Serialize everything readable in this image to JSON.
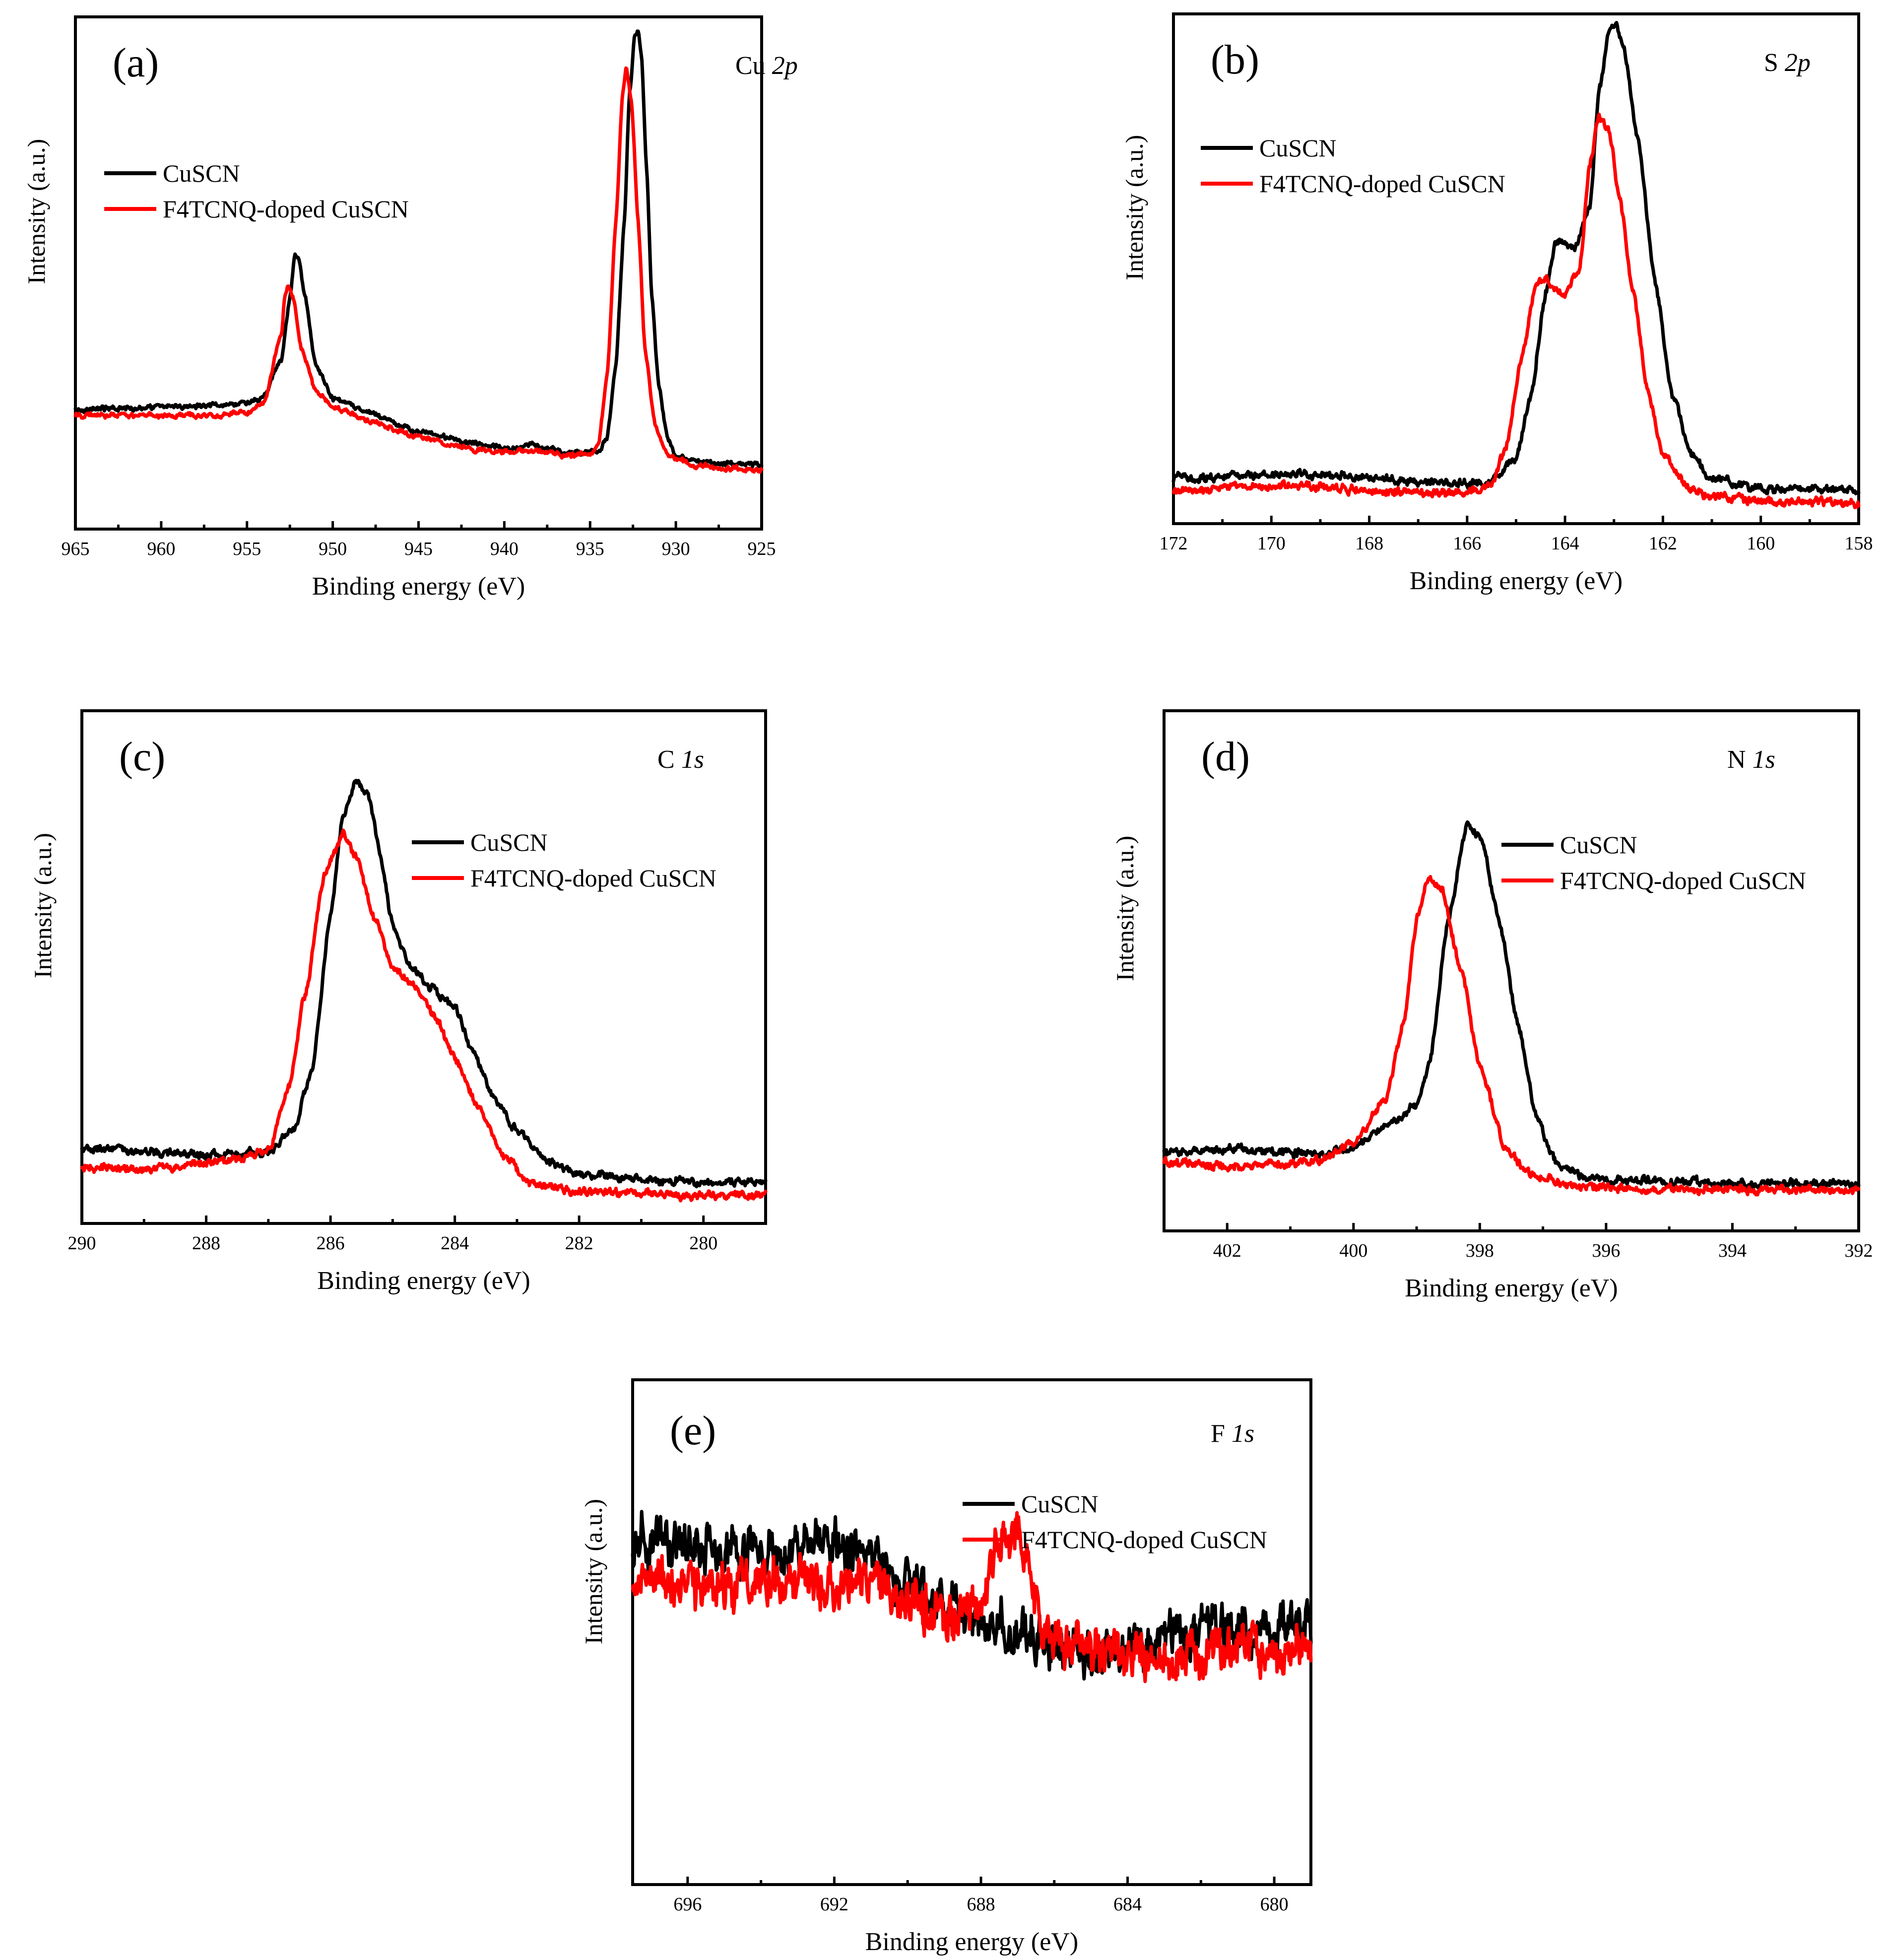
{
  "figure": {
    "description_panels": [
      "a",
      "b",
      "c",
      "d",
      "e"
    ]
  },
  "colors": {
    "series_pristine": "#000000",
    "series_doped": "#ff0000"
  },
  "legend": {
    "pristine": "CuSCN",
    "doped": "F4TCNQ-doped CuSCN"
  },
  "axis_labels": {
    "x": "Binding energy (eV)",
    "y": "Intensity (a.u.)"
  },
  "chart_data": [
    {
      "id": "a",
      "type": "line",
      "tag": "(a)",
      "element": "Cu",
      "orbital": "2p",
      "xlabel": "Binding energy (eV)",
      "ylabel": "Intensity (a.u.)",
      "xlim": [
        965,
        925
      ],
      "xticks": [
        965,
        960,
        955,
        950,
        945,
        940,
        935,
        930,
        925
      ],
      "ylim": [
        0,
        1
      ],
      "noise": 0.003,
      "series": [
        {
          "name": "CuSCN",
          "color": "#000000",
          "points": [
            [
              965,
              0.234
            ],
            [
              960,
              0.238
            ],
            [
              957,
              0.243
            ],
            [
              955,
              0.245
            ],
            [
              954,
              0.26
            ],
            [
              953,
              0.33
            ],
            [
              952.5,
              0.45
            ],
            [
              952.2,
              0.535
            ],
            [
              952,
              0.53
            ],
            [
              951.6,
              0.45
            ],
            [
              951,
              0.32
            ],
            [
              950,
              0.255
            ],
            [
              948,
              0.228
            ],
            [
              945,
              0.19
            ],
            [
              942,
              0.168
            ],
            [
              940,
              0.158
            ],
            [
              939,
              0.16
            ],
            [
              938.5,
              0.165
            ],
            [
              938,
              0.16
            ],
            [
              936,
              0.15
            ],
            [
              934.5,
              0.15
            ],
            [
              934,
              0.18
            ],
            [
              933.5,
              0.32
            ],
            [
              933,
              0.6
            ],
            [
              932.7,
              0.85
            ],
            [
              932.4,
              0.96
            ],
            [
              932.2,
              0.97
            ],
            [
              932,
              0.92
            ],
            [
              931.7,
              0.7
            ],
            [
              931.4,
              0.45
            ],
            [
              931,
              0.28
            ],
            [
              930.5,
              0.18
            ],
            [
              930,
              0.143
            ],
            [
              929,
              0.133
            ],
            [
              927,
              0.128
            ],
            [
              925,
              0.126
            ]
          ]
        },
        {
          "name": "F4TCNQ-doped CuSCN",
          "color": "#ff0000",
          "points": [
            [
              965,
              0.222
            ],
            [
              960,
              0.222
            ],
            [
              957,
              0.222
            ],
            [
              955,
              0.226
            ],
            [
              954,
              0.25
            ],
            [
              953,
              0.38
            ],
            [
              952.8,
              0.45
            ],
            [
              952.6,
              0.47
            ],
            [
              952.3,
              0.45
            ],
            [
              951.8,
              0.35
            ],
            [
              951,
              0.27
            ],
            [
              950,
              0.24
            ],
            [
              948,
              0.212
            ],
            [
              945,
              0.18
            ],
            [
              942,
              0.156
            ],
            [
              940,
              0.15
            ],
            [
              939,
              0.153
            ],
            [
              938,
              0.153
            ],
            [
              936,
              0.144
            ],
            [
              935,
              0.145
            ],
            [
              934.5,
              0.17
            ],
            [
              934,
              0.3
            ],
            [
              933.5,
              0.6
            ],
            [
              933.1,
              0.85
            ],
            [
              932.9,
              0.9
            ],
            [
              932.6,
              0.84
            ],
            [
              932.2,
              0.6
            ],
            [
              931.8,
              0.35
            ],
            [
              931.2,
              0.2
            ],
            [
              930.5,
              0.145
            ],
            [
              929,
              0.125
            ],
            [
              927,
              0.118
            ],
            [
              925,
              0.116
            ]
          ]
        }
      ]
    },
    {
      "id": "b",
      "type": "line",
      "tag": "(b)",
      "element": "S",
      "orbital": "2p",
      "xlabel": "Binding energy (eV)",
      "ylabel": "Intensity (a.u.)",
      "xlim": [
        172,
        158
      ],
      "xticks": [
        172,
        170,
        168,
        166,
        164,
        162,
        160,
        158
      ],
      "ylim": [
        0,
        1
      ],
      "noise": 0.005,
      "series": [
        {
          "name": "CuSCN",
          "color": "#000000",
          "points": [
            [
              172,
              0.09
            ],
            [
              170,
              0.097
            ],
            [
              169,
              0.098
            ],
            [
              168,
              0.09
            ],
            [
              167,
              0.082
            ],
            [
              166,
              0.078
            ],
            [
              165.5,
              0.085
            ],
            [
              165,
              0.13
            ],
            [
              164.7,
              0.25
            ],
            [
              164.4,
              0.45
            ],
            [
              164.2,
              0.55
            ],
            [
              164,
              0.55
            ],
            [
              163.8,
              0.535
            ],
            [
              163.5,
              0.62
            ],
            [
              163.3,
              0.85
            ],
            [
              163.1,
              0.97
            ],
            [
              162.95,
              0.98
            ],
            [
              162.8,
              0.93
            ],
            [
              162.5,
              0.75
            ],
            [
              162.2,
              0.5
            ],
            [
              161.8,
              0.25
            ],
            [
              161.4,
              0.13
            ],
            [
              161,
              0.09
            ],
            [
              160,
              0.07
            ],
            [
              159,
              0.065
            ],
            [
              158,
              0.065
            ]
          ]
        },
        {
          "name": "F4TCNQ-doped CuSCN",
          "color": "#ff0000",
          "points": [
            [
              172,
              0.065
            ],
            [
              170,
              0.075
            ],
            [
              169,
              0.072
            ],
            [
              168,
              0.065
            ],
            [
              167,
              0.06
            ],
            [
              166,
              0.06
            ],
            [
              165.5,
              0.075
            ],
            [
              165.2,
              0.15
            ],
            [
              164.9,
              0.32
            ],
            [
              164.6,
              0.47
            ],
            [
              164.4,
              0.48
            ],
            [
              164,
              0.45
            ],
            [
              163.7,
              0.5
            ],
            [
              163.5,
              0.7
            ],
            [
              163.3,
              0.8
            ],
            [
              163.1,
              0.77
            ],
            [
              162.9,
              0.65
            ],
            [
              162.6,
              0.45
            ],
            [
              162.3,
              0.26
            ],
            [
              162,
              0.14
            ],
            [
              161.5,
              0.07
            ],
            [
              161,
              0.055
            ],
            [
              160,
              0.045
            ],
            [
              158,
              0.04
            ]
          ]
        }
      ]
    },
    {
      "id": "c",
      "type": "line",
      "tag": "(c)",
      "element": "C",
      "orbital": "1s",
      "xlabel": "Binding energy (eV)",
      "ylabel": "Intensity (a.u.)",
      "xlim": [
        290,
        279
      ],
      "xticks": [
        290,
        288,
        286,
        284,
        282,
        280
      ],
      "ylim": [
        0,
        1
      ],
      "noise": 0.005,
      "series": [
        {
          "name": "CuSCN",
          "color": "#000000",
          "points": [
            [
              290,
              0.145
            ],
            [
              289,
              0.14
            ],
            [
              288,
              0.133
            ],
            [
              287.5,
              0.135
            ],
            [
              287,
              0.14
            ],
            [
              286.6,
              0.18
            ],
            [
              286.3,
              0.3
            ],
            [
              286,
              0.6
            ],
            [
              285.8,
              0.8
            ],
            [
              285.6,
              0.86
            ],
            [
              285.4,
              0.84
            ],
            [
              285.2,
              0.72
            ],
            [
              285,
              0.58
            ],
            [
              284.7,
              0.5
            ],
            [
              284.4,
              0.46
            ],
            [
              284,
              0.42
            ],
            [
              283.7,
              0.33
            ],
            [
              283.4,
              0.25
            ],
            [
              283,
              0.18
            ],
            [
              282.5,
              0.12
            ],
            [
              282,
              0.095
            ],
            [
              281,
              0.085
            ],
            [
              280,
              0.08
            ],
            [
              279,
              0.08
            ]
          ]
        },
        {
          "name": "F4TCNQ-doped CuSCN",
          "color": "#ff0000",
          "points": [
            [
              290,
              0.11
            ],
            [
              289,
              0.105
            ],
            [
              288,
              0.118
            ],
            [
              287.5,
              0.125
            ],
            [
              287,
              0.14
            ],
            [
              286.7,
              0.25
            ],
            [
              286.4,
              0.45
            ],
            [
              286.1,
              0.68
            ],
            [
              285.8,
              0.76
            ],
            [
              285.6,
              0.72
            ],
            [
              285.3,
              0.6
            ],
            [
              285,
              0.5
            ],
            [
              284.6,
              0.46
            ],
            [
              284.3,
              0.4
            ],
            [
              284,
              0.32
            ],
            [
              283.6,
              0.22
            ],
            [
              283.2,
              0.13
            ],
            [
              282.8,
              0.08
            ],
            [
              282,
              0.063
            ],
            [
              281,
              0.058
            ],
            [
              280,
              0.055
            ],
            [
              279,
              0.055
            ]
          ]
        }
      ]
    },
    {
      "id": "d",
      "type": "line",
      "tag": "(d)",
      "element": "N",
      "orbital": "1s",
      "xlabel": "Binding energy (eV)",
      "ylabel": "Intensity (a.u.)",
      "xlim": [
        403,
        392
      ],
      "xticks": [
        402,
        400,
        398,
        396,
        394,
        392
      ],
      "ylim": [
        0,
        1
      ],
      "noise": 0.005,
      "series": [
        {
          "name": "CuSCN",
          "color": "#000000",
          "points": [
            [
              403,
              0.15
            ],
            [
              402,
              0.158
            ],
            [
              401,
              0.152
            ],
            [
              400.5,
              0.148
            ],
            [
              400,
              0.16
            ],
            [
              399.5,
              0.2
            ],
            [
              399,
              0.24
            ],
            [
              398.8,
              0.32
            ],
            [
              398.5,
              0.6
            ],
            [
              398.2,
              0.78
            ],
            [
              398,
              0.76
            ],
            [
              397.7,
              0.6
            ],
            [
              397.4,
              0.4
            ],
            [
              397.1,
              0.22
            ],
            [
              396.8,
              0.13
            ],
            [
              396.3,
              0.1
            ],
            [
              395,
              0.095
            ],
            [
              394,
              0.09
            ],
            [
              392,
              0.09
            ]
          ]
        },
        {
          "name": "F4TCNQ-doped CuSCN",
          "color": "#ff0000",
          "points": [
            [
              403,
              0.13
            ],
            [
              402,
              0.125
            ],
            [
              401,
              0.128
            ],
            [
              400.5,
              0.135
            ],
            [
              400,
              0.17
            ],
            [
              399.5,
              0.25
            ],
            [
              399.2,
              0.4
            ],
            [
              399,
              0.6
            ],
            [
              398.8,
              0.68
            ],
            [
              398.6,
              0.66
            ],
            [
              398.3,
              0.5
            ],
            [
              398,
              0.32
            ],
            [
              397.6,
              0.16
            ],
            [
              397.2,
              0.11
            ],
            [
              396.5,
              0.085
            ],
            [
              395,
              0.08
            ],
            [
              392,
              0.078
            ]
          ]
        }
      ]
    },
    {
      "id": "e",
      "type": "line",
      "tag": "(e)",
      "element": "F",
      "orbital": "1s",
      "xlabel": "Binding energy (eV)",
      "ylabel": "Intensity (a.u.)",
      "xlim": [
        697.5,
        679
      ],
      "xticks": [
        696,
        692,
        688,
        684,
        680
      ],
      "ylim": [
        0,
        1
      ],
      "noise": 0.03,
      "series": [
        {
          "name": "CuSCN",
          "color": "#000000",
          "points": [
            [
              697.5,
              0.68
            ],
            [
              695,
              0.66
            ],
            [
              693,
              0.66
            ],
            [
              692,
              0.68
            ],
            [
              691,
              0.66
            ],
            [
              690,
              0.6
            ],
            [
              689,
              0.55
            ],
            [
              688,
              0.52
            ],
            [
              687,
              0.5
            ],
            [
              686,
              0.48
            ],
            [
              685,
              0.46
            ],
            [
              684,
              0.46
            ],
            [
              683,
              0.48
            ],
            [
              681,
              0.5
            ],
            [
              679,
              0.52
            ]
          ]
        },
        {
          "name": "F4TCNQ-doped CuSCN",
          "color": "#ff0000",
          "points": [
            [
              697.5,
              0.6
            ],
            [
              695,
              0.59
            ],
            [
              693,
              0.6
            ],
            [
              691,
              0.6
            ],
            [
              690,
              0.57
            ],
            [
              689,
              0.52
            ],
            [
              688.5,
              0.53
            ],
            [
              688,
              0.57
            ],
            [
              687.6,
              0.66
            ],
            [
              687.3,
              0.7
            ],
            [
              687,
              0.7
            ],
            [
              686.8,
              0.66
            ],
            [
              686.5,
              0.56
            ],
            [
              686,
              0.48
            ],
            [
              685,
              0.46
            ],
            [
              684,
              0.45
            ],
            [
              683,
              0.45
            ],
            [
              681,
              0.46
            ],
            [
              679,
              0.46
            ]
          ]
        }
      ]
    }
  ]
}
